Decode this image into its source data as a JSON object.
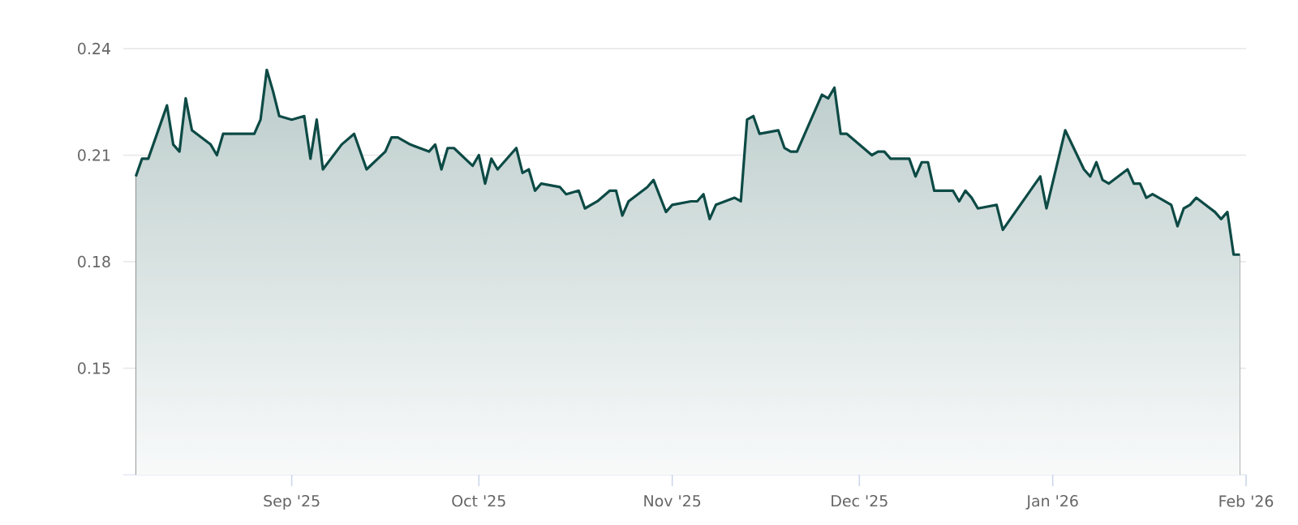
{
  "chart_data": {
    "type": "area",
    "color": "#0d4a45",
    "x": [
      "2025-08-07",
      "2025-08-08",
      "2025-08-09",
      "2025-08-12",
      "2025-08-13",
      "2025-08-14",
      "2025-08-15",
      "2025-08-16",
      "2025-08-19",
      "2025-08-20",
      "2025-08-21",
      "2025-08-26",
      "2025-08-27",
      "2025-08-28",
      "2025-08-29",
      "2025-08-30",
      "2025-09-01",
      "2025-09-03",
      "2025-09-04",
      "2025-09-05",
      "2025-09-06",
      "2025-09-09",
      "2025-09-11",
      "2025-09-13",
      "2025-09-16",
      "2025-09-17",
      "2025-09-18",
      "2025-09-20",
      "2025-09-23",
      "2025-09-24",
      "2025-09-25",
      "2025-09-26",
      "2025-09-27",
      "2025-09-30",
      "2025-10-01",
      "2025-10-02",
      "2025-10-03",
      "2025-10-04",
      "2025-10-07",
      "2025-10-08",
      "2025-10-09",
      "2025-10-10",
      "2025-10-11",
      "2025-10-14",
      "2025-10-15",
      "2025-10-17",
      "2025-10-18",
      "2025-10-20",
      "2025-10-22",
      "2025-10-23",
      "2025-10-24",
      "2025-10-25",
      "2025-10-28",
      "2025-10-29",
      "2025-10-31",
      "2025-11-01",
      "2025-11-04",
      "2025-11-05",
      "2025-11-06",
      "2025-11-07",
      "2025-11-08",
      "2025-11-11",
      "2025-11-12",
      "2025-11-13",
      "2025-11-14",
      "2025-11-15",
      "2025-11-18",
      "2025-11-19",
      "2025-11-20",
      "2025-11-21",
      "2025-11-25",
      "2025-11-26",
      "2025-11-27",
      "2025-11-28",
      "2025-11-29",
      "2025-12-03",
      "2025-12-04",
      "2025-12-05",
      "2025-12-06",
      "2025-12-09",
      "2025-12-10",
      "2025-12-11",
      "2025-12-12",
      "2025-12-13",
      "2025-12-16",
      "2025-12-17",
      "2025-12-18",
      "2025-12-19",
      "2025-12-20",
      "2025-12-23",
      "2025-12-24",
      "2025-12-30",
      "2025-12-31",
      "2026-01-03",
      "2026-01-06",
      "2026-01-07",
      "2026-01-08",
      "2026-01-09",
      "2026-01-10",
      "2026-01-13",
      "2026-01-14",
      "2026-01-15",
      "2026-01-16",
      "2026-01-17",
      "2026-01-20",
      "2026-01-21",
      "2026-01-22",
      "2026-01-23",
      "2026-01-24",
      "2026-01-27",
      "2026-01-28",
      "2026-01-29",
      "2026-01-30",
      "2026-01-31"
    ],
    "values": [
      0.204,
      0.209,
      0.209,
      0.224,
      0.213,
      0.211,
      0.226,
      0.217,
      0.213,
      0.21,
      0.216,
      0.216,
      0.22,
      0.234,
      0.228,
      0.221,
      0.22,
      0.221,
      0.209,
      0.22,
      0.206,
      0.213,
      0.216,
      0.206,
      0.211,
      0.215,
      0.215,
      0.213,
      0.211,
      0.213,
      0.206,
      0.212,
      0.212,
      0.207,
      0.21,
      0.202,
      0.209,
      0.206,
      0.212,
      0.205,
      0.206,
      0.2,
      0.202,
      0.201,
      0.199,
      0.2,
      0.195,
      0.197,
      0.2,
      0.2,
      0.193,
      0.197,
      0.201,
      0.203,
      0.194,
      0.196,
      0.197,
      0.197,
      0.199,
      0.192,
      0.196,
      0.198,
      0.197,
      0.22,
      0.221,
      0.216,
      0.217,
      0.212,
      0.211,
      0.211,
      0.227,
      0.226,
      0.229,
      0.216,
      0.216,
      0.21,
      0.211,
      0.211,
      0.209,
      0.209,
      0.204,
      0.208,
      0.208,
      0.2,
      0.2,
      0.197,
      0.2,
      0.198,
      0.195,
      0.196,
      0.189,
      0.204,
      0.195,
      0.217,
      0.206,
      0.204,
      0.208,
      0.203,
      0.202,
      0.206,
      0.202,
      0.202,
      0.198,
      0.199,
      0.196,
      0.19,
      0.195,
      0.196,
      0.198,
      0.194,
      0.192,
      0.194,
      0.182,
      0.182
    ],
    "xlim": [
      "2025-08-05",
      "2026-02-01"
    ],
    "xticks": [
      {
        "value": "2025-09-01",
        "label": "Sep '25"
      },
      {
        "value": "2025-10-01",
        "label": "Oct '25"
      },
      {
        "value": "2025-11-01",
        "label": "Nov '25"
      },
      {
        "value": "2025-12-01",
        "label": "Dec '25"
      },
      {
        "value": "2026-01-01",
        "label": "Jan '26"
      },
      {
        "value": "2026-02-01",
        "label": "Feb '26"
      }
    ],
    "ylim": [
      0.12,
      0.24
    ],
    "yticks": [
      0.15,
      0.18,
      0.21,
      0.24
    ],
    "grid": "y"
  }
}
